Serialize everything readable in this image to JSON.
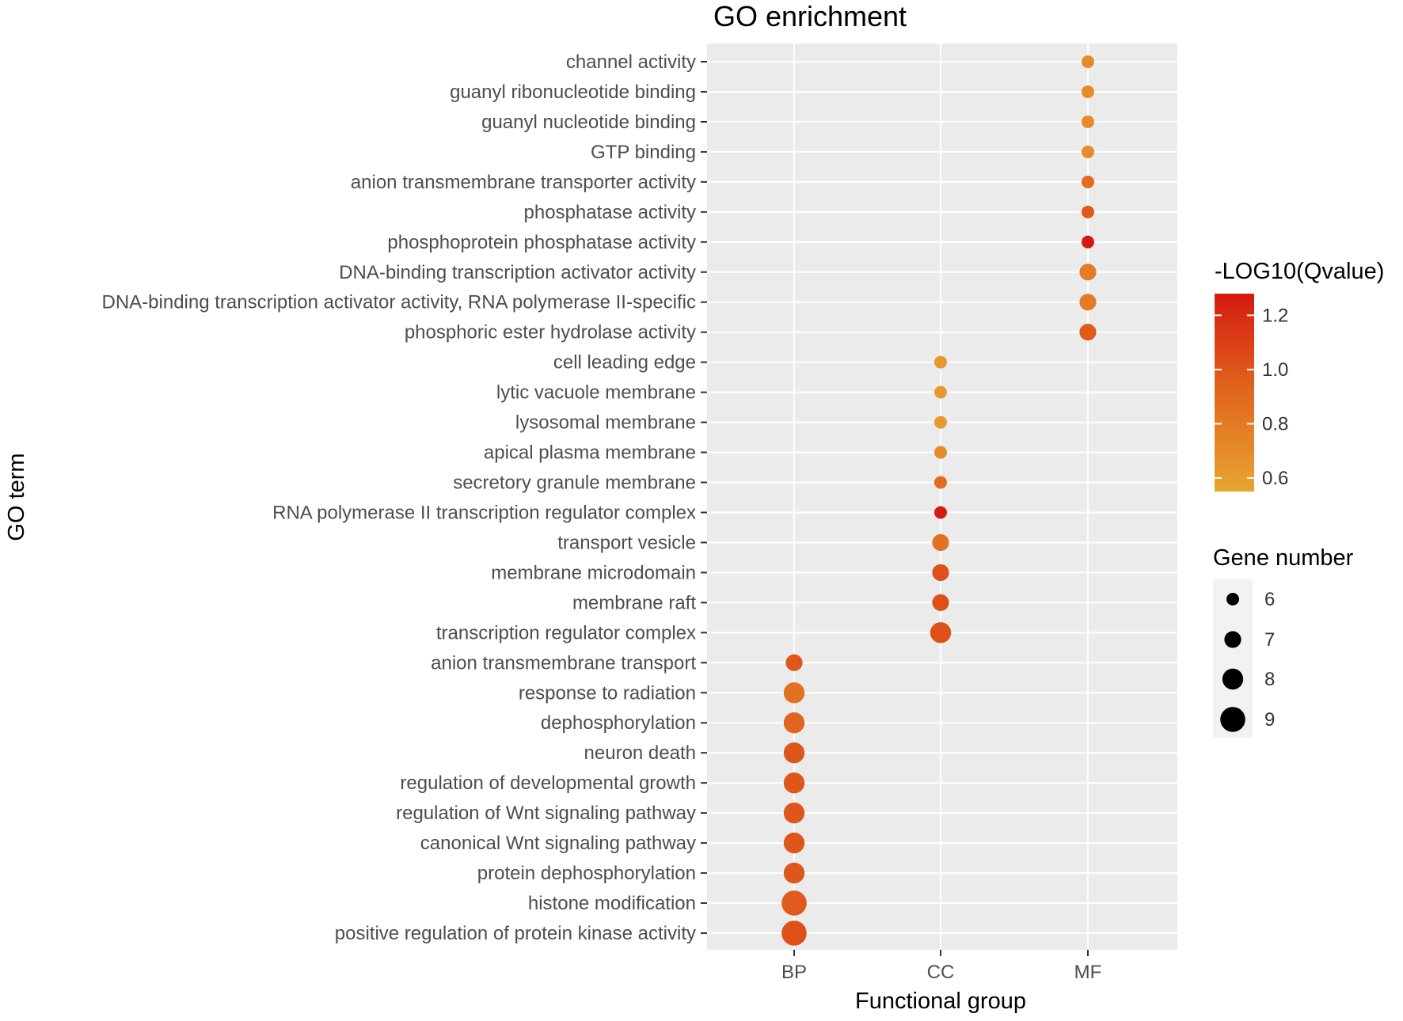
{
  "chart_data": {
    "type": "scatter",
    "title": "GO enrichment",
    "xlabel": "Functional group",
    "ylabel": "GO term",
    "categories": [
      "BP",
      "CC",
      "MF"
    ],
    "terms": [
      "positive regulation of protein kinase activity",
      "histone modification",
      "protein dephosphorylation",
      "canonical Wnt signaling pathway",
      "regulation of Wnt signaling pathway",
      "regulation of developmental growth",
      "neuron death",
      "dephosphorylation",
      "response to radiation",
      "anion transmembrane transport",
      "transcription regulator complex",
      "membrane raft",
      "membrane microdomain",
      "transport vesicle",
      "RNA polymerase II transcription regulator complex",
      "secretory granule membrane",
      "apical plasma membrane",
      "lysosomal membrane",
      "lytic vacuole membrane",
      "cell leading edge",
      "phosphoric ester hydrolase activity",
      "DNA-binding transcription activator activity, RNA polymerase II-specific",
      "DNA-binding transcription activator activity",
      "phosphoprotein phosphatase activity",
      "phosphatase activity",
      "anion transmembrane transporter activity",
      "GTP binding",
      "guanyl nucleotide binding",
      "guanyl ribonucleotide binding",
      "channel activity"
    ],
    "points": [
      {
        "term": "positive regulation of protein kinase activity",
        "group": "BP",
        "qvalue": 1.02,
        "gene_number": 9
      },
      {
        "term": "histone modification",
        "group": "BP",
        "qvalue": 0.98,
        "gene_number": 9
      },
      {
        "term": "protein dephosphorylation",
        "group": "BP",
        "qvalue": 1.0,
        "gene_number": 8
      },
      {
        "term": "canonical Wnt signaling pathway",
        "group": "BP",
        "qvalue": 1.0,
        "gene_number": 8
      },
      {
        "term": "regulation of Wnt signaling pathway",
        "group": "BP",
        "qvalue": 1.0,
        "gene_number": 8
      },
      {
        "term": "regulation of developmental growth",
        "group": "BP",
        "qvalue": 1.0,
        "gene_number": 8
      },
      {
        "term": "neuron death",
        "group": "BP",
        "qvalue": 1.0,
        "gene_number": 8
      },
      {
        "term": "dephosphorylation",
        "group": "BP",
        "qvalue": 0.92,
        "gene_number": 8
      },
      {
        "term": "response to radiation",
        "group": "BP",
        "qvalue": 0.85,
        "gene_number": 8
      },
      {
        "term": "anion transmembrane transport",
        "group": "BP",
        "qvalue": 1.0,
        "gene_number": 7
      },
      {
        "term": "transcription regulator complex",
        "group": "CC",
        "qvalue": 1.02,
        "gene_number": 8
      },
      {
        "term": "membrane raft",
        "group": "CC",
        "qvalue": 1.02,
        "gene_number": 7
      },
      {
        "term": "membrane microdomain",
        "group": "CC",
        "qvalue": 1.02,
        "gene_number": 7
      },
      {
        "term": "transport vesicle",
        "group": "CC",
        "qvalue": 0.85,
        "gene_number": 7
      },
      {
        "term": "RNA polymerase II transcription regulator complex",
        "group": "CC",
        "qvalue": 1.27,
        "gene_number": 6
      },
      {
        "term": "secretory granule membrane",
        "group": "CC",
        "qvalue": 0.88,
        "gene_number": 6
      },
      {
        "term": "apical plasma membrane",
        "group": "CC",
        "qvalue": 0.7,
        "gene_number": 6
      },
      {
        "term": "lysosomal membrane",
        "group": "CC",
        "qvalue": 0.62,
        "gene_number": 6
      },
      {
        "term": "lytic vacuole membrane",
        "group": "CC",
        "qvalue": 0.62,
        "gene_number": 6
      },
      {
        "term": "cell leading edge",
        "group": "CC",
        "qvalue": 0.62,
        "gene_number": 6
      },
      {
        "term": "phosphoric ester hydrolase activity",
        "group": "MF",
        "qvalue": 0.98,
        "gene_number": 7
      },
      {
        "term": "DNA-binding transcription activator activity, RNA polymerase II-specific",
        "group": "MF",
        "qvalue": 0.78,
        "gene_number": 7
      },
      {
        "term": "DNA-binding transcription activator activity",
        "group": "MF",
        "qvalue": 0.78,
        "gene_number": 7
      },
      {
        "term": "phosphoprotein phosphatase activity",
        "group": "MF",
        "qvalue": 1.28,
        "gene_number": 6
      },
      {
        "term": "phosphatase activity",
        "group": "MF",
        "qvalue": 0.98,
        "gene_number": 6
      },
      {
        "term": "anion transmembrane transporter activity",
        "group": "MF",
        "qvalue": 0.88,
        "gene_number": 6
      },
      {
        "term": "GTP binding",
        "group": "MF",
        "qvalue": 0.7,
        "gene_number": 6
      },
      {
        "term": "guanyl nucleotide binding",
        "group": "MF",
        "qvalue": 0.7,
        "gene_number": 6
      },
      {
        "term": "guanyl ribonucleotide binding",
        "group": "MF",
        "qvalue": 0.7,
        "gene_number": 6
      },
      {
        "term": "channel activity",
        "group": "MF",
        "qvalue": 0.7,
        "gene_number": 6
      }
    ],
    "color_legend": {
      "title": "-LOG10(Qvalue)",
      "range": [
        0.55,
        1.28
      ],
      "ticks": [
        0.6,
        0.8,
        1.0,
        1.2
      ],
      "tick_labels": [
        "0.6",
        "0.8",
        "1.0",
        "1.2"
      ],
      "low_color": "#E8A530",
      "mid_color": "#E0601C",
      "high_color": "#D41A10"
    },
    "size_legend": {
      "title": "Gene number",
      "values": [
        6,
        7,
        8,
        9
      ],
      "labels": [
        "6",
        "7",
        "8",
        "9"
      ]
    },
    "panel_background": "#EBEBEB",
    "grid_color": "#FFFFFF",
    "legend_position": "right"
  }
}
